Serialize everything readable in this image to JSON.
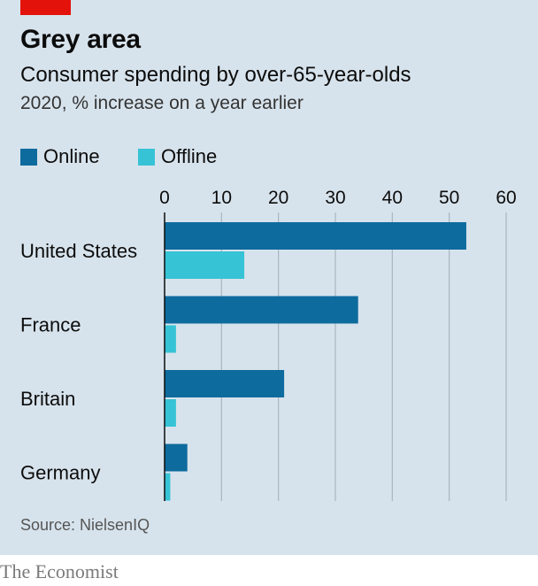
{
  "header": {
    "title": "Grey area",
    "subtitle": "Consumer spending by over-65-year-olds",
    "unit": "2020, % increase on a year earlier"
  },
  "legend": {
    "online_label": "Online",
    "offline_label": "Offline"
  },
  "colors": {
    "online": "#0e6b9e",
    "offline": "#36c3d6",
    "background": "#d7e3ec",
    "gridline": "#aab6bf",
    "brand_red": "#e3120b"
  },
  "chart_data": {
    "type": "bar",
    "orientation": "horizontal",
    "categories": [
      "United States",
      "France",
      "Britain",
      "Germany"
    ],
    "series": [
      {
        "name": "Online",
        "values": [
          53,
          34,
          21,
          4
        ]
      },
      {
        "name": "Offline",
        "values": [
          14,
          2,
          2,
          1
        ]
      }
    ],
    "xlim": [
      0,
      60
    ],
    "xticks": [
      0,
      10,
      20,
      30,
      40,
      50,
      60
    ],
    "tick_position": "top",
    "grid": true,
    "legend_position": "top-left"
  },
  "footer": {
    "source": "Source: NielsenIQ",
    "brand": "The Economist"
  }
}
